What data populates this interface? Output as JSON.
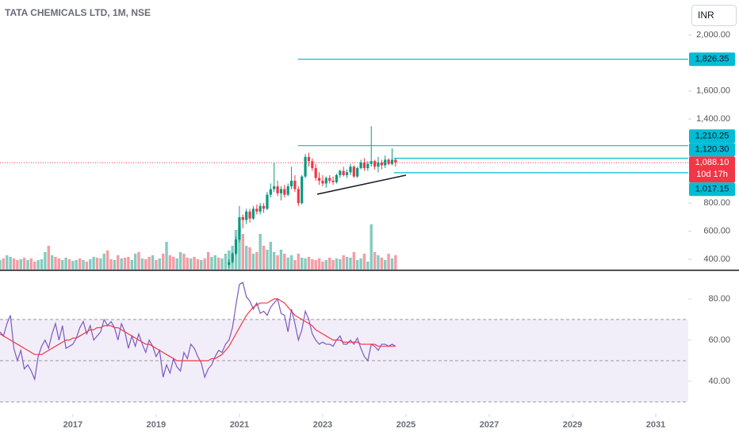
{
  "chart_data": [
    {
      "type": "candlestick",
      "title": "TATA CHEMICALS LTD, 1M, NSE",
      "currency": "INR",
      "xlim": [
        2015.25,
        2031.78
      ],
      "xticks": [
        2017,
        2019,
        2021,
        2023,
        2025,
        2027,
        2029,
        2031
      ],
      "ylim": [
        326.5,
        2249
      ],
      "yticks": [
        {
          "value": 2000,
          "label": "2,000.00"
        },
        {
          "value": 1600,
          "label": "1,600.00"
        },
        {
          "value": 1400,
          "label": "1,400.00"
        },
        {
          "value": 800,
          "label": "800.00"
        },
        {
          "value": 600,
          "label": "600.00"
        },
        {
          "value": 400,
          "label": "400.00"
        }
      ],
      "up_color": "#089981",
      "down_color": "#f23645",
      "x": [
        2020.75,
        2020.833,
        2020.917,
        2021,
        2021.083,
        2021.167,
        2021.25,
        2021.333,
        2021.417,
        2021.5,
        2021.583,
        2021.667,
        2021.75,
        2021.833,
        2021.917,
        2022,
        2022.083,
        2022.167,
        2022.25,
        2022.333,
        2022.417,
        2022.5,
        2022.583,
        2022.667,
        2022.75,
        2022.833,
        2022.917,
        2023,
        2023.083,
        2023.167,
        2023.25,
        2023.333,
        2023.417,
        2023.5,
        2023.583,
        2023.667,
        2023.75,
        2023.833,
        2023.917,
        2024,
        2024.083,
        2024.167,
        2024.25,
        2024.333,
        2024.417,
        2024.5,
        2024.583,
        2024.667,
        2024.75
      ],
      "open": [
        360,
        380,
        440,
        540,
        700,
        680,
        740,
        690,
        760,
        740,
        780,
        760,
        860,
        900,
        920,
        870,
        900,
        860,
        920,
        960,
        900,
        800,
        990,
        1130,
        1100,
        1050,
        980,
        960,
        940,
        980,
        960,
        950,
        1000,
        1030,
        1000,
        1020,
        1060,
        990,
        1050,
        1090,
        1050,
        1080,
        1100,
        1060,
        1090,
        1070,
        1110,
        1080,
        1110
      ],
      "high": [
        400,
        450,
        560,
        780,
        720,
        760,
        760,
        780,
        790,
        800,
        800,
        880,
        940,
        1090,
        960,
        920,
        930,
        940,
        1060,
        1000,
        920,
        1000,
        1150,
        1160,
        1120,
        1080,
        1020,
        1000,
        990,
        1000,
        990,
        1010,
        1040,
        1060,
        1040,
        1080,
        1070,
        1060,
        1110,
        1120,
        1100,
        1349,
        1110,
        1130,
        1110,
        1140,
        1120,
        1190,
        1120
      ],
      "low": [
        340,
        370,
        430,
        520,
        620,
        650,
        660,
        680,
        720,
        720,
        730,
        750,
        840,
        880,
        850,
        820,
        840,
        850,
        900,
        880,
        780,
        790,
        980,
        1060,
        1030,
        960,
        930,
        920,
        910,
        940,
        930,
        940,
        980,
        990,
        980,
        1000,
        980,
        980,
        1040,
        1030,
        1030,
        1060,
        1040,
        1020,
        1040,
        1050,
        1070,
        1070,
        1060
      ],
      "close": [
        380,
        440,
        540,
        700,
        680,
        740,
        690,
        760,
        740,
        780,
        760,
        860,
        900,
        920,
        870,
        900,
        860,
        920,
        960,
        900,
        800,
        990,
        1130,
        1100,
        1050,
        980,
        960,
        940,
        980,
        960,
        950,
        1000,
        1030,
        1000,
        1020,
        1060,
        990,
        1050,
        1090,
        1050,
        1080,
        1100,
        1060,
        1090,
        1070,
        1110,
        1080,
        1110,
        1088.1
      ],
      "level_color": "#00bcd4",
      "levels": [
        {
          "value": 1826.35,
          "label": "1,826.35"
        },
        {
          "value": 1210.25,
          "label": "1,210.25"
        },
        {
          "value": 1120.3,
          "label": "1,120.30"
        },
        {
          "value": 1017.15,
          "label": "1,017.15"
        }
      ],
      "last_price": {
        "value": 1088.1,
        "label": "1,088.10",
        "countdown": "10d 17h",
        "color": "#f23645"
      }
    },
    {
      "type": "volume",
      "xlim": [
        2015.25,
        2031.78
      ],
      "ylim": [
        0,
        100
      ],
      "up_color": "rgba(8,153,129,0.5)",
      "down_color": "rgba(242,54,69,0.5)",
      "x": [
        2015.25,
        2015.333,
        2015.417,
        2015.5,
        2015.583,
        2015.667,
        2015.75,
        2015.833,
        2015.917,
        2016,
        2016.083,
        2016.167,
        2016.25,
        2016.333,
        2016.417,
        2016.5,
        2016.583,
        2016.667,
        2016.75,
        2016.833,
        2016.917,
        2017,
        2017.083,
        2017.167,
        2017.25,
        2017.333,
        2017.417,
        2017.5,
        2017.583,
        2017.667,
        2017.75,
        2017.833,
        2017.917,
        2018,
        2018.083,
        2018.167,
        2018.25,
        2018.333,
        2018.417,
        2018.5,
        2018.583,
        2018.667,
        2018.75,
        2018.833,
        2018.917,
        2019,
        2019.083,
        2019.167,
        2019.25,
        2019.333,
        2019.417,
        2019.5,
        2019.583,
        2019.667,
        2019.75,
        2019.833,
        2019.917,
        2020,
        2020.083,
        2020.167,
        2020.25,
        2020.333,
        2020.417,
        2020.5,
        2020.583,
        2020.667,
        2020.75,
        2020.833,
        2020.917,
        2021,
        2021.083,
        2021.167,
        2021.25,
        2021.333,
        2021.417,
        2021.5,
        2021.583,
        2021.667,
        2021.75,
        2021.833,
        2021.917,
        2022,
        2022.083,
        2022.167,
        2022.25,
        2022.333,
        2022.417,
        2022.5,
        2022.583,
        2022.667,
        2022.75,
        2022.833,
        2022.917,
        2023,
        2023.083,
        2023.167,
        2023.25,
        2023.333,
        2023.417,
        2023.5,
        2023.583,
        2023.667,
        2023.75,
        2023.833,
        2023.917,
        2024,
        2024.083,
        2024.167,
        2024.25,
        2024.333,
        2024.417,
        2024.5,
        2024.583,
        2024.667,
        2024.75
      ],
      "values": [
        12,
        14,
        18,
        16,
        14,
        12,
        13,
        15,
        12,
        14,
        10,
        12,
        13,
        22,
        30,
        18,
        16,
        14,
        12,
        15,
        13,
        11,
        12,
        14,
        12,
        10,
        13,
        16,
        15,
        14,
        20,
        24,
        13,
        12,
        18,
        14,
        15,
        16,
        12,
        20,
        22,
        14,
        13,
        16,
        18,
        12,
        14,
        20,
        35,
        18,
        16,
        14,
        22,
        20,
        15,
        14,
        16,
        13,
        12,
        14,
        22,
        16,
        18,
        15,
        14,
        20,
        24,
        30,
        50,
        55,
        45,
        30,
        28,
        20,
        22,
        45,
        30,
        25,
        35,
        22,
        18,
        25,
        20,
        15,
        18,
        12,
        20,
        15,
        14,
        16,
        13,
        12,
        14,
        10,
        12,
        15,
        12,
        14,
        13,
        18,
        16,
        15,
        22,
        12,
        14,
        20,
        10,
        57,
        22,
        18,
        15,
        12,
        20,
        14,
        18
      ],
      "up": [
        true,
        false,
        true,
        true,
        false,
        false,
        true,
        false,
        true,
        false,
        false,
        true,
        true,
        true,
        false,
        true,
        false,
        false,
        true,
        true,
        false,
        true,
        true,
        false,
        true,
        false,
        true,
        true,
        false,
        true,
        true,
        false,
        false,
        true,
        false,
        true,
        false,
        false,
        true,
        true,
        false,
        true,
        false,
        false,
        true,
        false,
        true,
        false,
        true,
        false,
        false,
        true,
        true,
        false,
        false,
        true,
        false,
        false,
        true,
        false,
        false,
        true,
        true,
        false,
        true,
        true,
        true,
        true,
        true,
        true,
        false,
        true,
        false,
        true,
        false,
        true,
        false,
        true,
        true,
        true,
        false,
        true,
        false,
        true,
        true,
        false,
        false,
        true,
        true,
        false,
        false,
        false,
        false,
        false,
        true,
        false,
        false,
        true,
        true,
        false,
        true,
        true,
        false,
        true,
        true,
        false,
        true,
        true,
        false,
        true,
        false,
        true,
        false,
        true,
        false
      ]
    },
    {
      "type": "line",
      "xlim": [
        2015.25,
        2031.78
      ],
      "ylim": [
        25,
        93.85
      ],
      "yticks": [
        {
          "value": 80,
          "label": "80.00"
        },
        {
          "value": 60,
          "label": "60.00"
        },
        {
          "value": 40,
          "label": "40.00"
        }
      ],
      "bands": [
        70,
        50,
        30
      ],
      "band_color": "rgba(126,87,194,0.1)",
      "x": [
        2015.25,
        2015.333,
        2015.417,
        2015.5,
        2015.583,
        2015.667,
        2015.75,
        2015.833,
        2015.917,
        2016,
        2016.083,
        2016.167,
        2016.25,
        2016.333,
        2016.417,
        2016.5,
        2016.583,
        2016.667,
        2016.75,
        2016.833,
        2016.917,
        2017,
        2017.083,
        2017.167,
        2017.25,
        2017.333,
        2017.417,
        2017.5,
        2017.583,
        2017.667,
        2017.75,
        2017.833,
        2017.917,
        2018,
        2018.083,
        2018.167,
        2018.25,
        2018.333,
        2018.417,
        2018.5,
        2018.583,
        2018.667,
        2018.75,
        2018.833,
        2018.917,
        2019,
        2019.083,
        2019.167,
        2019.25,
        2019.333,
        2019.417,
        2019.5,
        2019.583,
        2019.667,
        2019.75,
        2019.833,
        2019.917,
        2020,
        2020.083,
        2020.167,
        2020.25,
        2020.333,
        2020.417,
        2020.5,
        2020.583,
        2020.667,
        2020.75,
        2020.833,
        2020.917,
        2021,
        2021.083,
        2021.167,
        2021.25,
        2021.333,
        2021.417,
        2021.5,
        2021.583,
        2021.667,
        2021.75,
        2021.833,
        2021.917,
        2022,
        2022.083,
        2022.167,
        2022.25,
        2022.333,
        2022.417,
        2022.5,
        2022.583,
        2022.667,
        2022.75,
        2022.833,
        2022.917,
        2023,
        2023.083,
        2023.167,
        2023.25,
        2023.333,
        2023.417,
        2023.5,
        2023.583,
        2023.667,
        2023.75,
        2023.833,
        2023.917,
        2024,
        2024.083,
        2024.167,
        2024.25,
        2024.333,
        2024.417,
        2024.5,
        2024.583,
        2024.667,
        2024.75
      ],
      "series": [
        {
          "color": "#7e57c2",
          "values": [
            64,
            62,
            68,
            72,
            56,
            50,
            55,
            46,
            48,
            45,
            41,
            52,
            57,
            60,
            56,
            63,
            68,
            60,
            67,
            56,
            57,
            58,
            61,
            66,
            69,
            63,
            67,
            60,
            62,
            64,
            70,
            67,
            69,
            66,
            60,
            68,
            64,
            56,
            62,
            57,
            63,
            58,
            54,
            60,
            57,
            52,
            55,
            42,
            48,
            44,
            51,
            47,
            45,
            54,
            51,
            58,
            56,
            52,
            49,
            42,
            46,
            48,
            52,
            55,
            54,
            58,
            60,
            66,
            77,
            87,
            88,
            81,
            79,
            75,
            78,
            73,
            74,
            72,
            76,
            78,
            80,
            73,
            72,
            64,
            75,
            68,
            60,
            65,
            74,
            70,
            63,
            60,
            58,
            59,
            58,
            58,
            57,
            60,
            62,
            58,
            58,
            60,
            58,
            61,
            56,
            52,
            50,
            58,
            57,
            55,
            58,
            58,
            57,
            58,
            57
          ]
        },
        {
          "color": "#f23645",
          "values": [
            63,
            62,
            61,
            60,
            59,
            58,
            57,
            56,
            55,
            54,
            53,
            53,
            53,
            54,
            55,
            56,
            57,
            58,
            59,
            60,
            60,
            61,
            61,
            62,
            63,
            64,
            65,
            65,
            66,
            66,
            67,
            67,
            67,
            66,
            66,
            65,
            64,
            63,
            62,
            61,
            60,
            59,
            58,
            58,
            57,
            56,
            55,
            54,
            53,
            52,
            51,
            50,
            50,
            50,
            50,
            50,
            50,
            50,
            50,
            50,
            50,
            51,
            51,
            52,
            53,
            55,
            57,
            60,
            63,
            66,
            69,
            72,
            74,
            76,
            77,
            78,
            78,
            78,
            79,
            80,
            80,
            79,
            78,
            76,
            74,
            72,
            71,
            70,
            69,
            68,
            67,
            65,
            64,
            63,
            62,
            61,
            60,
            60,
            60,
            59,
            59,
            59,
            59,
            59,
            58,
            58,
            58,
            58,
            58,
            57,
            57,
            57,
            57,
            57,
            57
          ]
        }
      ]
    }
  ]
}
